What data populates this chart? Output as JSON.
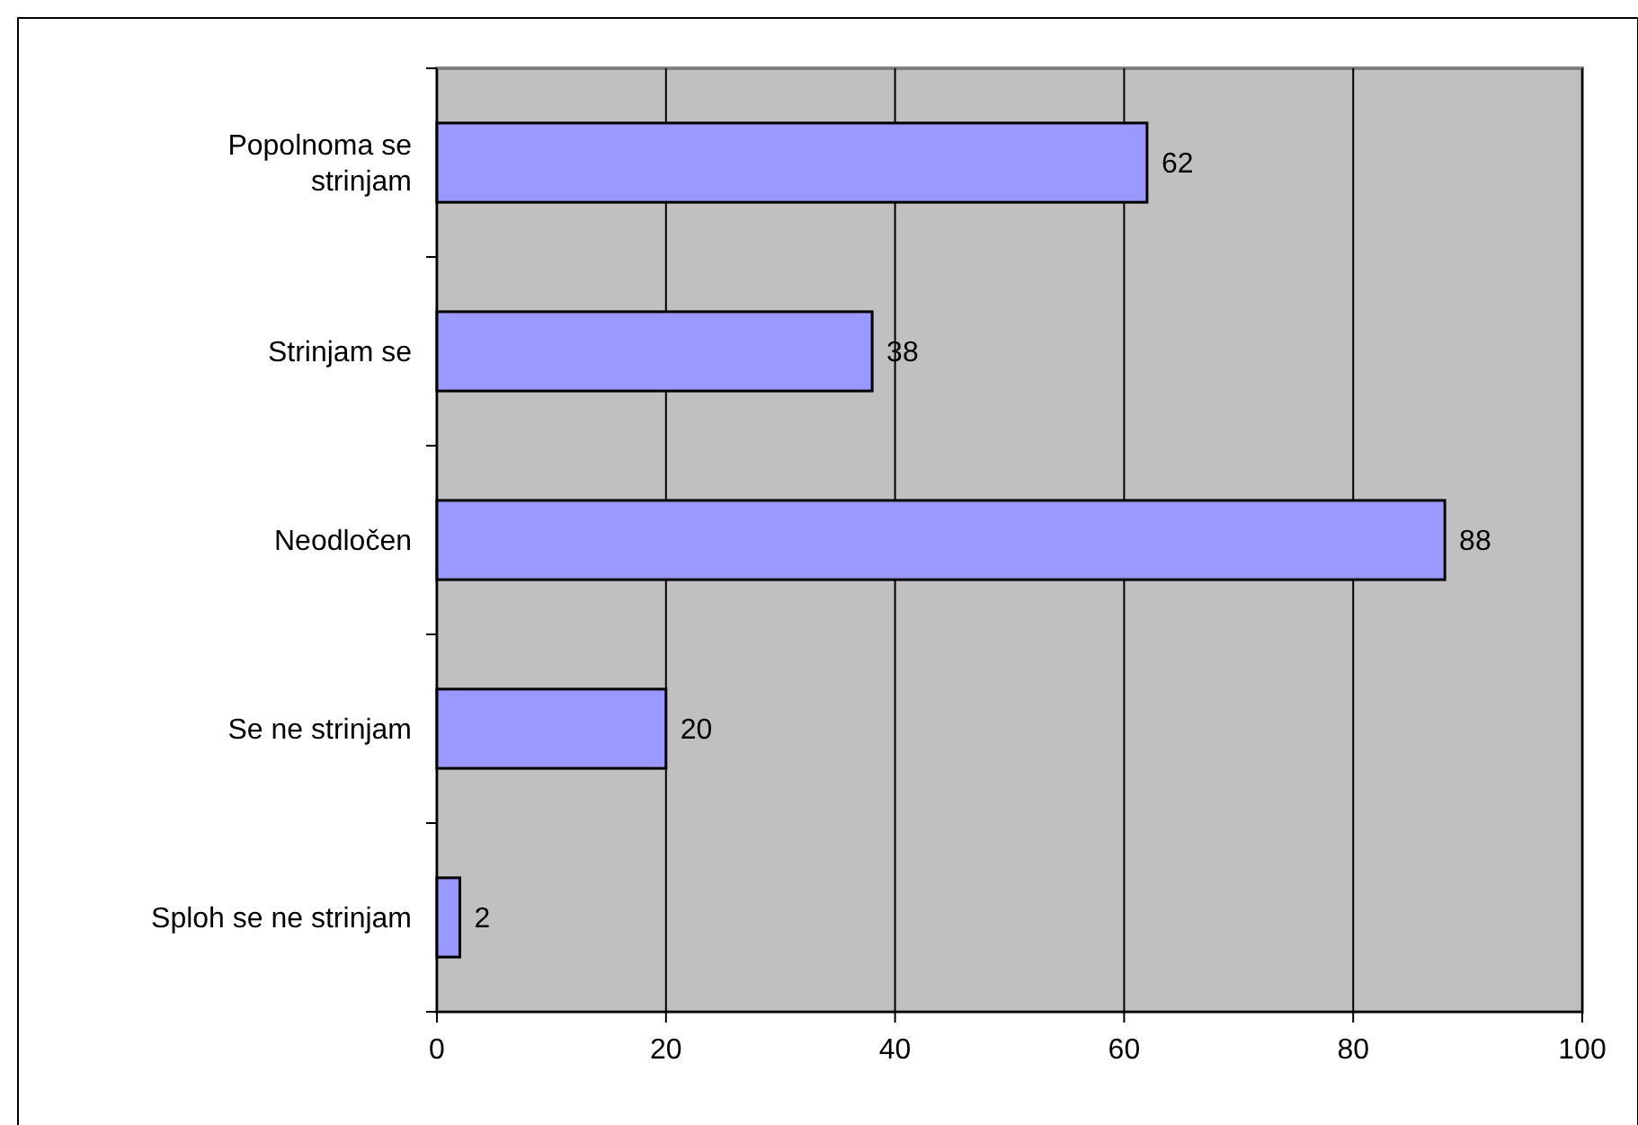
{
  "chart_data": {
    "type": "bar",
    "orientation": "horizontal",
    "categories": [
      "Popolnoma se strinjam",
      "Strinjam se",
      "Neodločen",
      "Se ne strinjam",
      "Sploh se ne strinjam"
    ],
    "values": [
      62,
      38,
      88,
      20,
      2
    ],
    "color": "#9999ff",
    "xlim": [
      0,
      100
    ],
    "xticks": [
      0,
      20,
      40,
      60,
      80,
      100
    ],
    "grid": "x",
    "data_labels": true
  }
}
